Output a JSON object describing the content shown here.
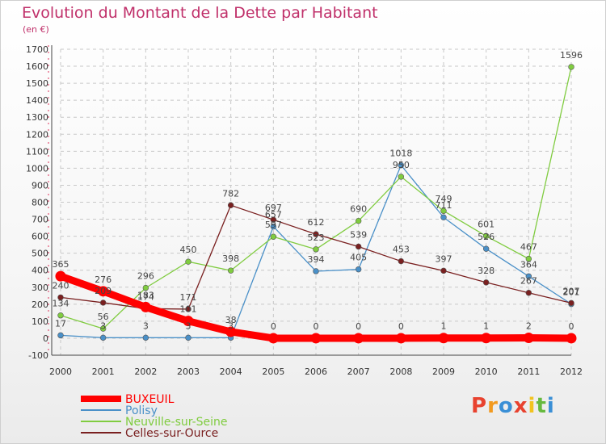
{
  "chart_data": {
    "type": "line",
    "title": "Evolution du Montant de la Dette par Habitant",
    "subtitle": "(en €)",
    "x": [
      "2000",
      "2001",
      "2002",
      "2003",
      "2004",
      "2005",
      "2006",
      "2007",
      "2008",
      "2009",
      "2010",
      "2011",
      "2012"
    ],
    "y_ticks": [
      -100,
      0,
      100,
      200,
      300,
      400,
      500,
      600,
      700,
      800,
      900,
      1000,
      1100,
      1200,
      1300,
      1400,
      1500,
      1600,
      1700
    ],
    "ylim": [
      -100,
      1700
    ],
    "grid": true,
    "legend_position": "bottom-left",
    "series": [
      {
        "name": "BUXEUIL",
        "color": "#ff0000",
        "values": [
          365,
          276,
          183,
          101,
          38,
          0,
          0,
          0,
          0,
          1,
          1,
          2,
          0
        ]
      },
      {
        "name": "Polisy",
        "color": "#4a90c8",
        "values": [
          17,
          3,
          3,
          3,
          3,
          657,
          394,
          405,
          1018,
          711,
          526,
          364,
          201
        ]
      },
      {
        "name": "Neuville-sur-Seine",
        "color": "#80cc40",
        "values": [
          134,
          56,
          296,
          450,
          398,
          597,
          523,
          690,
          950,
          749,
          601,
          467,
          1596
        ]
      },
      {
        "name": "Celles-sur-Ource",
        "color": "#7a2020",
        "values": [
          240,
          209,
          174,
          171,
          782,
          697,
          612,
          539,
          453,
          397,
          328,
          267,
          207
        ]
      }
    ]
  },
  "logo": {
    "letters": [
      "P",
      "r",
      "o",
      "x",
      "i",
      "t",
      "i"
    ],
    "colors": [
      "#e8422f",
      "#f29a1f",
      "#3a8fd6",
      "#e8422f",
      "#f2c31f",
      "#66b93e",
      "#3a8fd6"
    ]
  }
}
